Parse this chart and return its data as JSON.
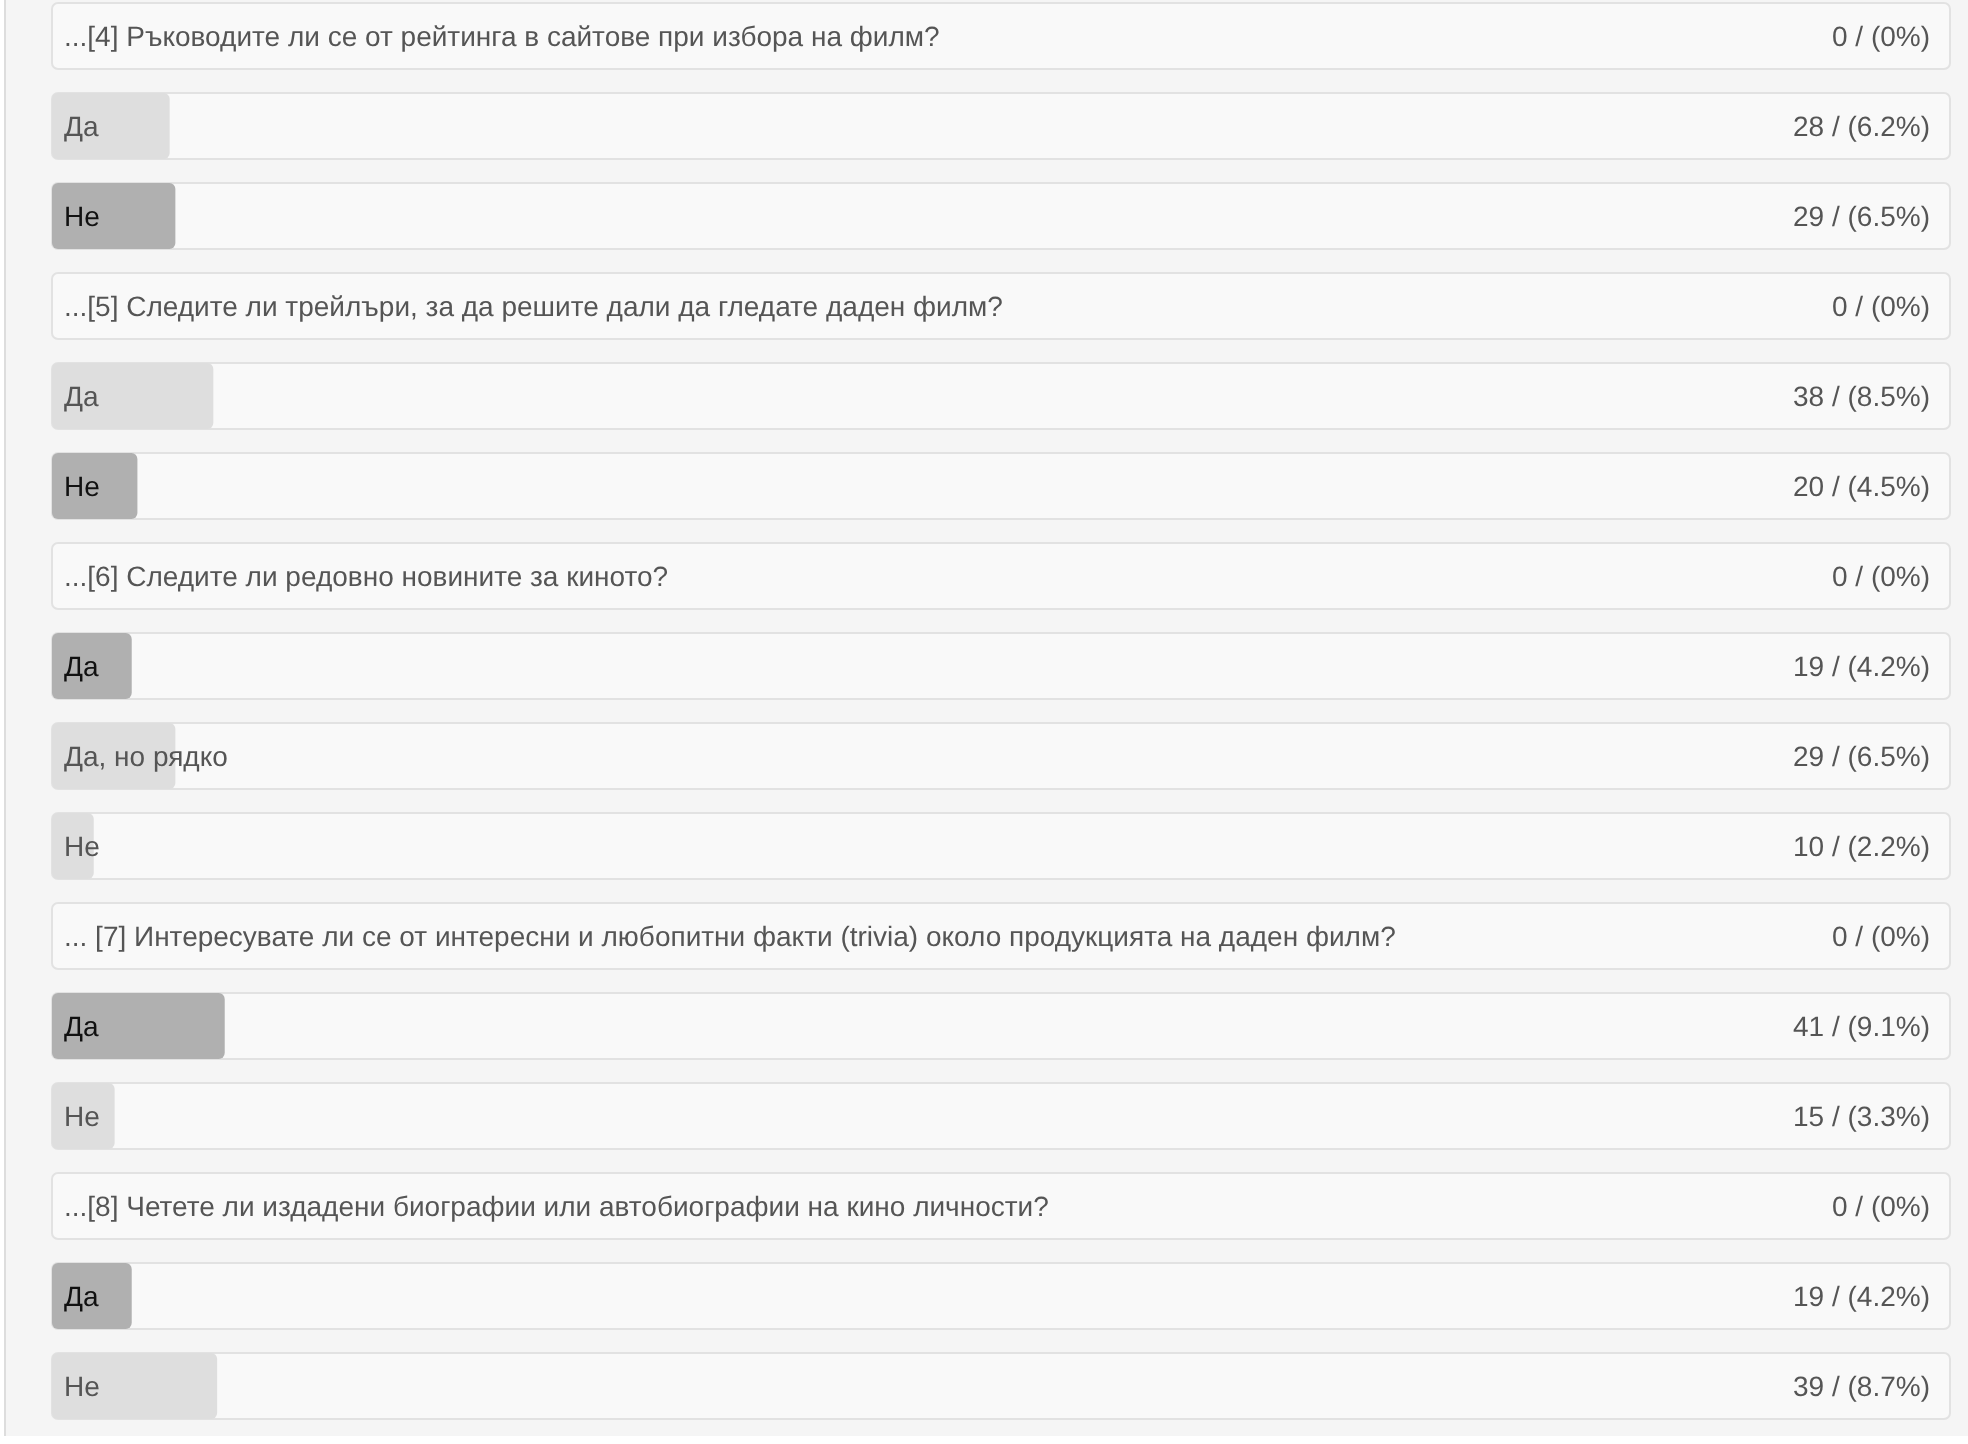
{
  "chart_data": {
    "type": "bar",
    "orientation": "horizontal",
    "categories": [
      "...[4] Ръководите ли се от рейтинга в сайтове при избора на филм?",
      "Да",
      "Не",
      "...[5] Следите ли трейлъри, за да решите дали да гледате даден филм?",
      "Да",
      "Не",
      "...[6] Следите ли редовно новините за киното?",
      "Да",
      "Да, но рядко",
      "Не",
      "... [7] Интересувате ли се от интересни и любопитни факти (trivia) около продукцията на даден филм?",
      "Да",
      "Не",
      "...[8] Четете ли издадени биографии или автобиографии на кино личности?",
      "Да",
      "Не"
    ],
    "values": [
      0,
      6.2,
      6.5,
      0,
      8.5,
      4.5,
      0,
      4.2,
      6.5,
      2.2,
      0,
      9.1,
      3.3,
      0,
      4.2,
      8.7
    ],
    "value_labels": [
      "0 / (0%)",
      "28 / (6.2%)",
      "29 / (6.5%)",
      "0 / (0%)",
      "38 / (8.5%)",
      "20 / (4.5%)",
      "0 / (0%)",
      "19 / (4.2%)",
      "29 / (6.5%)",
      "10 / (2.2%)",
      "0 / (0%)",
      "41 / (9.1%)",
      "15 / (3.3%)",
      "0 / (0%)",
      "19 / (4.2%)",
      "39 / (8.7%)"
    ],
    "colors": [
      "#dedede",
      "#dedede",
      "#b0b0b0",
      "#dedede",
      "#dedede",
      "#b0b0b0",
      "#dedede",
      "#b0b0b0",
      "#dedede",
      "#dedede",
      "#dedede",
      "#b0b0b0",
      "#dedede",
      "#dedede",
      "#b0b0b0",
      "#dedede"
    ],
    "xlim": [
      0,
      100
    ]
  }
}
